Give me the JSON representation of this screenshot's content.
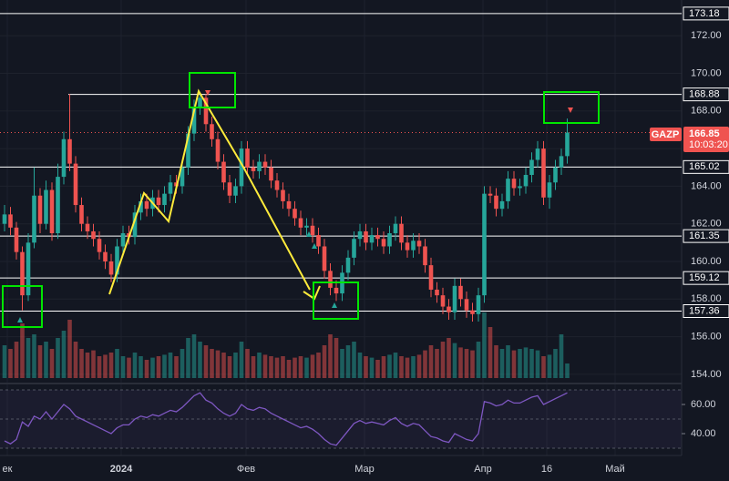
{
  "chart_data": {
    "type": "candlestick",
    "symbol": "GAZP",
    "last_price": 166.85,
    "last_price_label": "166.85",
    "timer": "10:03:20",
    "ylim": [
      153.8,
      173.9
    ],
    "yticks": [
      {
        "value": 154,
        "label": "154.00"
      },
      {
        "value": 156,
        "label": "156.00"
      },
      {
        "value": 158,
        "label": "158.00"
      },
      {
        "value": 160,
        "label": "160.00"
      },
      {
        "value": 162,
        "label": "162.00"
      },
      {
        "value": 164,
        "label": "164.00"
      },
      {
        "value": 166,
        "label": "166.00"
      },
      {
        "value": 168,
        "label": "168.00"
      },
      {
        "value": 170,
        "label": "170.00"
      },
      {
        "value": 172,
        "label": "172.00"
      }
    ],
    "levels": [
      {
        "value": 173.18,
        "label": "173.18"
      },
      {
        "value": 168.88,
        "label": "168.88"
      },
      {
        "value": 165.02,
        "label": "165.02"
      },
      {
        "value": 161.35,
        "label": "161.35"
      },
      {
        "value": 159.12,
        "label": "159.12"
      },
      {
        "value": 157.36,
        "label": "157.36"
      }
    ],
    "xlabels": [
      "ек",
      "2024",
      "Фев",
      "Мар",
      "Апр",
      "16",
      "Май"
    ],
    "up_color": "#26a69a",
    "down_color": "#ef5350",
    "rsi_color": "#7e57c2",
    "open": [
      162.0,
      162.5,
      161.8,
      160.5,
      158.2,
      161.0,
      163.5,
      162.0,
      163.8,
      161.5,
      164.5,
      166.5,
      165.2,
      163.0,
      162.0,
      161.6,
      161.2,
      160.5,
      160.0,
      159.3,
      160.8,
      161.5,
      161.3,
      162.6,
      163.2,
      162.8,
      163.4,
      163.0,
      163.6,
      164.2,
      164.0,
      165.0,
      166.8,
      168.2,
      168.7,
      167.3,
      166.5,
      165.3,
      164.2,
      163.5,
      164.0,
      166.0,
      165.0,
      164.8,
      165.3,
      165.0,
      164.3,
      163.8,
      163.2,
      162.8,
      162.3,
      161.8,
      161.9,
      161.4,
      160.8,
      159.5,
      158.6,
      158.3,
      159.4,
      160.2,
      161.2,
      161.6,
      161.0,
      161.4,
      161.2,
      160.8,
      161.5,
      162.0,
      161.0,
      160.6,
      161.1,
      160.8,
      159.8,
      158.5,
      158.2,
      157.6,
      157.3,
      158.7,
      158.0,
      157.4,
      157.2,
      158.2,
      163.6,
      163.5,
      162.8,
      163.2,
      164.4,
      163.9,
      164.0,
      164.6,
      165.4,
      166.0,
      163.4,
      164.2,
      165.0,
      165.6
    ],
    "high": [
      163.0,
      162.9,
      162.1,
      160.8,
      161.5,
      165.0,
      163.9,
      164.3,
      164.2,
      165.2,
      166.9,
      168.9,
      165.6,
      163.4,
      162.4,
      162.0,
      161.6,
      160.9,
      160.4,
      161.2,
      161.9,
      161.9,
      163.0,
      163.6,
      163.6,
      163.8,
      163.8,
      164.0,
      164.6,
      164.6,
      165.4,
      167.2,
      168.6,
      169.0,
      168.9,
      167.7,
      166.9,
      165.7,
      164.6,
      164.4,
      166.4,
      166.4,
      165.4,
      165.7,
      165.7,
      165.4,
      164.7,
      164.2,
      163.6,
      163.2,
      162.7,
      162.3,
      162.3,
      161.8,
      161.2,
      159.9,
      159.0,
      159.8,
      160.6,
      161.6,
      162.0,
      162.0,
      161.8,
      161.8,
      161.6,
      161.9,
      162.4,
      162.4,
      161.4,
      161.5,
      161.5,
      161.2,
      160.2,
      158.9,
      158.6,
      158.0,
      159.1,
      159.1,
      158.4,
      157.8,
      158.6,
      164.0,
      164.0,
      163.9,
      163.6,
      164.8,
      164.8,
      164.4,
      165.0,
      165.8,
      166.4,
      166.4,
      164.6,
      165.4,
      166.0,
      167.6
    ],
    "low": [
      161.6,
      161.4,
      160.1,
      157.4,
      157.9,
      160.7,
      161.5,
      161.7,
      161.1,
      161.2,
      164.1,
      164.8,
      162.6,
      161.6,
      161.2,
      160.8,
      160.1,
      159.6,
      158.9,
      158.9,
      160.4,
      160.9,
      160.9,
      162.2,
      162.4,
      162.4,
      162.6,
      162.6,
      163.2,
      163.6,
      163.6,
      164.6,
      166.4,
      167.8,
      166.9,
      166.1,
      164.9,
      163.8,
      163.1,
      163.1,
      163.6,
      164.6,
      164.4,
      164.4,
      164.6,
      163.9,
      163.4,
      162.8,
      162.4,
      161.9,
      161.4,
      161.4,
      161.0,
      160.4,
      159.1,
      158.2,
      157.9,
      157.9,
      159.0,
      159.8,
      160.8,
      160.6,
      160.6,
      160.8,
      160.4,
      160.4,
      161.1,
      160.6,
      160.2,
      160.2,
      160.4,
      159.4,
      158.1,
      157.8,
      157.2,
      156.9,
      156.9,
      157.6,
      157.0,
      156.8,
      156.8,
      157.8,
      163.1,
      162.4,
      162.4,
      162.8,
      163.5,
      163.5,
      163.6,
      164.2,
      165.0,
      163.0,
      162.8,
      163.8,
      164.6,
      165.2
    ],
    "close": [
      162.5,
      161.8,
      160.5,
      158.2,
      161.0,
      163.5,
      162.0,
      163.8,
      161.5,
      164.5,
      166.5,
      165.2,
      163.0,
      162.0,
      161.6,
      161.2,
      160.5,
      160.0,
      159.3,
      160.8,
      161.5,
      161.3,
      162.6,
      163.2,
      162.8,
      163.4,
      163.0,
      163.6,
      164.2,
      164.0,
      165.0,
      166.8,
      168.2,
      168.7,
      167.3,
      166.5,
      165.3,
      164.2,
      163.5,
      164.0,
      166.0,
      165.0,
      164.8,
      165.3,
      165.0,
      164.3,
      163.8,
      163.2,
      162.8,
      162.3,
      161.8,
      161.9,
      161.4,
      160.8,
      159.5,
      158.6,
      158.3,
      159.4,
      160.2,
      161.2,
      161.6,
      161.0,
      161.4,
      161.2,
      160.8,
      161.5,
      162.0,
      161.0,
      160.6,
      161.1,
      160.8,
      159.8,
      158.5,
      158.2,
      157.6,
      157.3,
      158.7,
      158.0,
      157.4,
      157.2,
      158.2,
      163.6,
      163.5,
      162.8,
      163.2,
      164.4,
      163.9,
      164.0,
      164.6,
      165.4,
      166.0,
      163.4,
      164.2,
      165.0,
      165.6,
      166.85
    ],
    "volume": [
      45,
      40,
      50,
      75,
      55,
      60,
      45,
      50,
      40,
      55,
      65,
      80,
      50,
      40,
      35,
      38,
      30,
      32,
      35,
      40,
      30,
      28,
      35,
      30,
      25,
      28,
      30,
      32,
      35,
      30,
      40,
      55,
      60,
      50,
      45,
      40,
      38,
      35,
      30,
      35,
      50,
      40,
      30,
      35,
      32,
      30,
      28,
      30,
      25,
      28,
      30,
      28,
      32,
      35,
      45,
      60,
      55,
      40,
      45,
      50,
      35,
      30,
      28,
      25,
      30,
      32,
      35,
      30,
      28,
      30,
      32,
      38,
      45,
      40,
      50,
      55,
      48,
      42,
      40,
      38,
      50,
      90,
      70,
      45,
      40,
      45,
      38,
      40,
      42,
      40,
      38,
      30,
      32,
      40,
      60,
      20
    ],
    "rsi": [
      35,
      33,
      36,
      48,
      45,
      52,
      50,
      55,
      50,
      55,
      60,
      57,
      52,
      50,
      48,
      46,
      44,
      42,
      40,
      44,
      46,
      46,
      50,
      52,
      51,
      53,
      52,
      54,
      56,
      55,
      58,
      62,
      66,
      68,
      63,
      61,
      57,
      54,
      52,
      54,
      60,
      57,
      56,
      58,
      57,
      54,
      52,
      50,
      48,
      46,
      44,
      45,
      43,
      40,
      36,
      33,
      32,
      37,
      42,
      47,
      49,
      47,
      48,
      47,
      46,
      49,
      51,
      47,
      45,
      47,
      46,
      42,
      38,
      37,
      35,
      34,
      40,
      38,
      36,
      35,
      40,
      62,
      61,
      59,
      60,
      63,
      61,
      61,
      63,
      65,
      66,
      60,
      62,
      64,
      66,
      68
    ],
    "rsi_ylim": [
      30,
      70
    ],
    "rsi_ticks": [
      {
        "value": 60,
        "label": "60.00"
      },
      {
        "value": 40,
        "label": "40.00"
      }
    ]
  }
}
